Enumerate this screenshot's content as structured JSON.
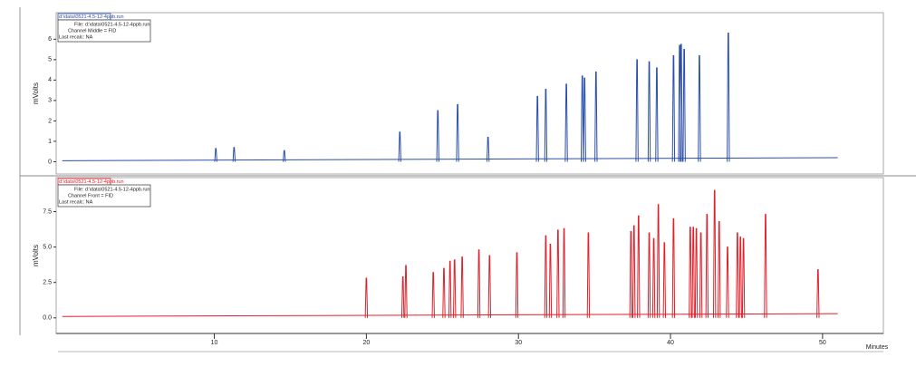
{
  "chart_data": [
    {
      "type": "line",
      "ylabel": "mVolts",
      "color": "#2b4ea8",
      "annotations": [
        "d:\\data\\0521-4.5-12-4ppb.run",
        "File: d:\\data\\0521-4.5-12-4ppb.run",
        "Channel Middle = FID",
        "Last recalc: NA"
      ],
      "xlim": [
        -0.4,
        54
      ],
      "ylim": [
        -0.6,
        7.3
      ],
      "yticks": [
        0,
        1,
        2,
        3,
        4,
        5,
        6
      ],
      "x": [
        0,
        10.1,
        11.3,
        14.6,
        22.2,
        24.7,
        26.0,
        28.0,
        31.25,
        31.8,
        33.15,
        34.2,
        34.35,
        35.1,
        37.8,
        38.6,
        39.1,
        40.2,
        40.6,
        40.7,
        40.9,
        41.9,
        43.8,
        51
      ],
      "values": [
        0.05,
        0.65,
        0.7,
        0.55,
        1.45,
        2.5,
        2.8,
        1.2,
        3.2,
        3.55,
        3.8,
        4.2,
        4.1,
        4.4,
        5.0,
        4.9,
        4.6,
        5.2,
        5.7,
        5.75,
        5.5,
        5.2,
        6.3,
        0.2
      ]
    },
    {
      "type": "line",
      "ylabel": "mVolts",
      "color": "#e0202a",
      "xlabel": "Minutes",
      "annotations": [
        "d:\\data\\0521-4.5-12-4ppb.run",
        "File: d:\\data\\0521-4.5-12-4ppb.run",
        "Channel Front = FID",
        "Last recalc: NA"
      ],
      "xlim": [
        -0.4,
        54
      ],
      "xticks": [
        10,
        20,
        30,
        40,
        50
      ],
      "ylim": [
        -1.1,
        9.9
      ],
      "yticks": [
        {
          "value": 0,
          "label": "0.0"
        },
        2.5,
        {
          "value": 5,
          "label": "5.0"
        },
        7.5
      ],
      "x": [
        0,
        20.0,
        22.4,
        22.6,
        24.4,
        25.1,
        25.5,
        25.8,
        26.3,
        27.4,
        28.1,
        29.9,
        31.8,
        32.1,
        32.6,
        33.0,
        34.6,
        37.4,
        37.6,
        37.9,
        38.6,
        38.9,
        39.2,
        39.6,
        40.2,
        41.3,
        41.5,
        41.7,
        42.0,
        42.4,
        42.9,
        43.2,
        43.75,
        44.4,
        44.6,
        44.8,
        46.25,
        49.7,
        51
      ],
      "values": [
        0.1,
        2.8,
        2.9,
        3.7,
        3.2,
        3.5,
        4.0,
        4.1,
        4.3,
        4.8,
        4.4,
        4.6,
        5.8,
        5.2,
        6.2,
        6.3,
        6.0,
        6.1,
        6.5,
        7.2,
        6.0,
        5.6,
        8.0,
        5.3,
        7.0,
        6.4,
        6.4,
        6.3,
        6.0,
        7.3,
        9.0,
        6.8,
        5.0,
        6.0,
        5.7,
        5.6,
        7.3,
        3.4,
        0.3
      ]
    }
  ]
}
